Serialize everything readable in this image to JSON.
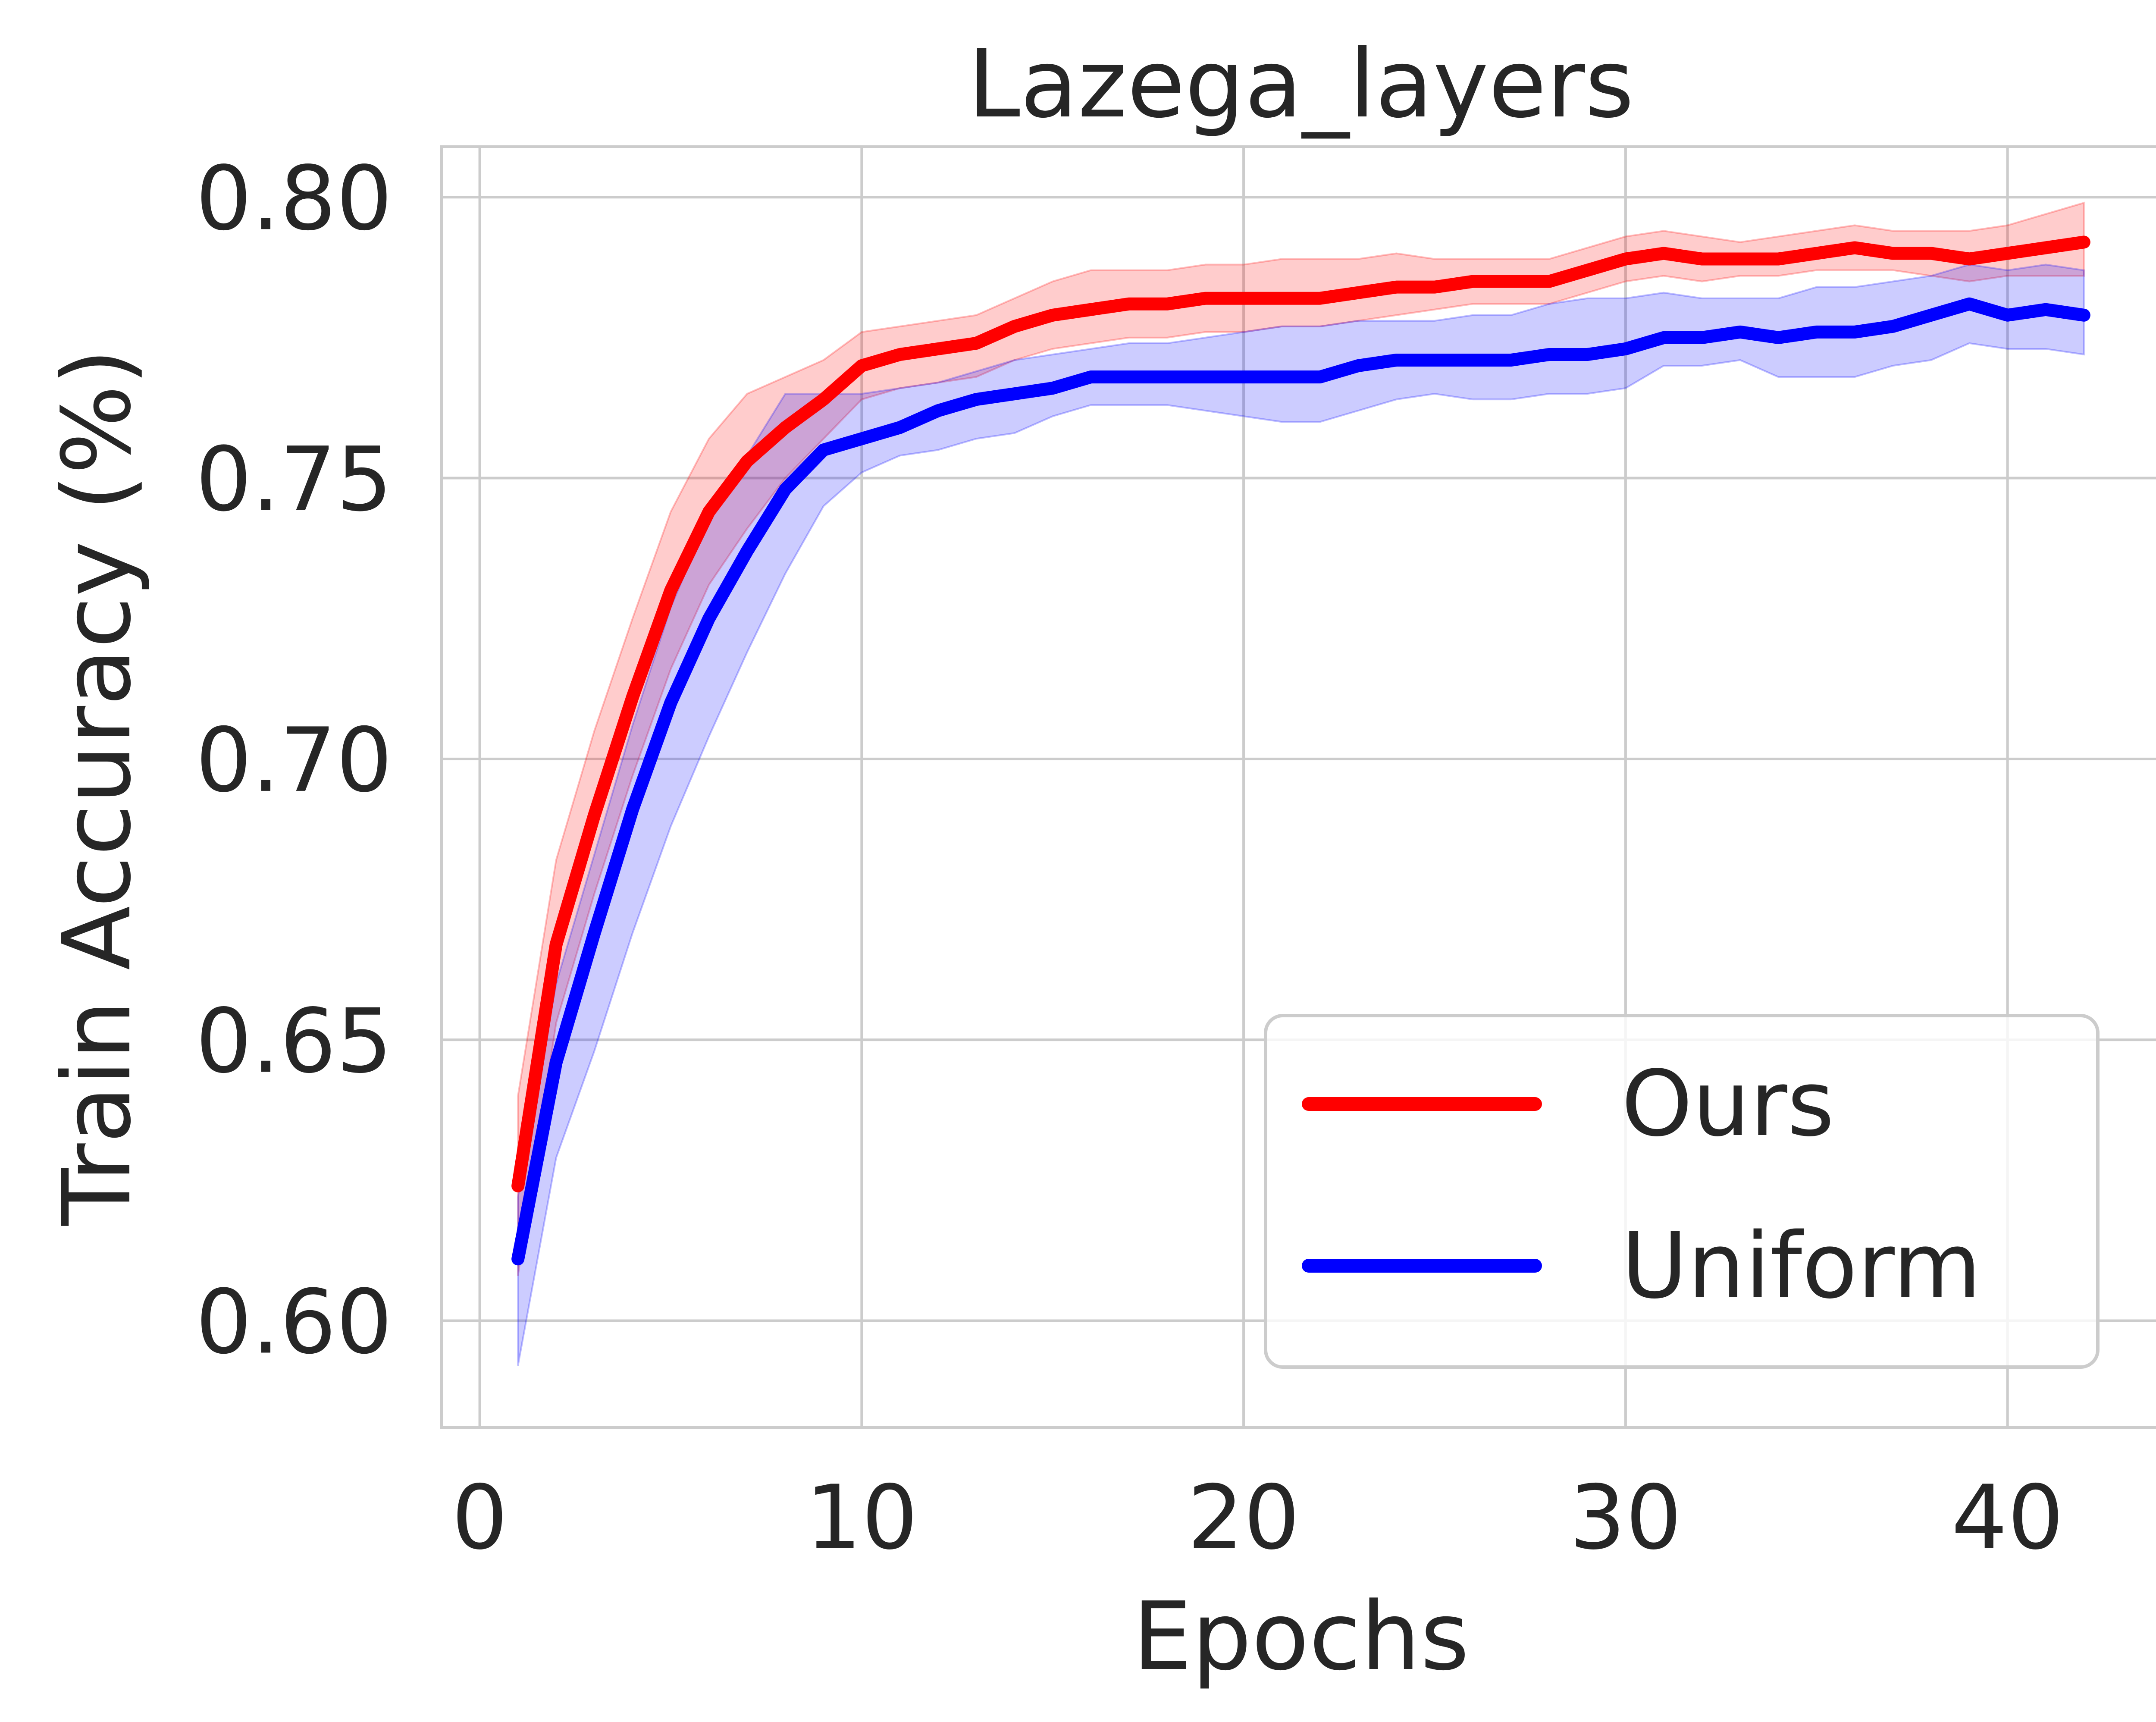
{
  "chart_data": {
    "type": "line",
    "title": "Lazega_layers",
    "xlabel": "Epochs",
    "ylabel": "Train Accuracy (%)",
    "xlim": [
      -1,
      44
    ],
    "ylim": [
      0.581,
      0.809
    ],
    "xticks": [
      0,
      10,
      20,
      30,
      40
    ],
    "xtick_labels": [
      "0",
      "10",
      "20",
      "30",
      "40"
    ],
    "yticks": [
      0.6,
      0.65,
      0.7,
      0.75,
      0.8
    ],
    "ytick_labels": [
      "0.60",
      "0.65",
      "0.70",
      "0.75",
      "0.80"
    ],
    "grid": true,
    "legend_position": "lower-right",
    "x": [
      1,
      2,
      3,
      4,
      5,
      6,
      7,
      8,
      9,
      10,
      11,
      12,
      13,
      14,
      15,
      16,
      17,
      18,
      19,
      20,
      21,
      22,
      23,
      24,
      25,
      26,
      27,
      28,
      29,
      30,
      31,
      32,
      33,
      34,
      35,
      36,
      37,
      38,
      39,
      40,
      41,
      42
    ],
    "series": [
      {
        "name": "Ours",
        "color": "#ff0000",
        "band_color": "#ff0000",
        "values": [
          0.624,
          0.667,
          0.69,
          0.711,
          0.73,
          0.744,
          0.753,
          0.759,
          0.764,
          0.77,
          0.772,
          0.773,
          0.774,
          0.777,
          0.779,
          0.78,
          0.781,
          0.781,
          0.782,
          0.782,
          0.782,
          0.782,
          0.783,
          0.784,
          0.784,
          0.785,
          0.785,
          0.785,
          0.787,
          0.789,
          0.79,
          0.789,
          0.789,
          0.789,
          0.79,
          0.791,
          0.79,
          0.79,
          0.789,
          0.79,
          0.791,
          0.792
        ],
        "lower": [
          0.608,
          0.653,
          0.676,
          0.697,
          0.716,
          0.731,
          0.741,
          0.75,
          0.757,
          0.764,
          0.766,
          0.767,
          0.768,
          0.771,
          0.773,
          0.774,
          0.775,
          0.775,
          0.776,
          0.776,
          0.777,
          0.777,
          0.778,
          0.779,
          0.78,
          0.781,
          0.781,
          0.781,
          0.783,
          0.785,
          0.786,
          0.785,
          0.786,
          0.786,
          0.787,
          0.787,
          0.787,
          0.786,
          0.785,
          0.786,
          0.786,
          0.786
        ],
        "upper": [
          0.64,
          0.682,
          0.705,
          0.725,
          0.744,
          0.757,
          0.765,
          0.768,
          0.771,
          0.776,
          0.777,
          0.778,
          0.779,
          0.782,
          0.785,
          0.787,
          0.787,
          0.787,
          0.788,
          0.788,
          0.789,
          0.789,
          0.789,
          0.79,
          0.789,
          0.789,
          0.789,
          0.789,
          0.791,
          0.793,
          0.794,
          0.793,
          0.792,
          0.793,
          0.794,
          0.795,
          0.794,
          0.794,
          0.794,
          0.795,
          0.797,
          0.799
        ]
      },
      {
        "name": "Uniform",
        "color": "#0000ff",
        "band_color": "#0000ff",
        "values": [
          0.611,
          0.646,
          0.669,
          0.691,
          0.71,
          0.725,
          0.737,
          0.748,
          0.755,
          0.757,
          0.759,
          0.762,
          0.764,
          0.765,
          0.766,
          0.768,
          0.768,
          0.768,
          0.768,
          0.768,
          0.768,
          0.768,
          0.77,
          0.771,
          0.771,
          0.771,
          0.771,
          0.772,
          0.772,
          0.773,
          0.775,
          0.775,
          0.776,
          0.775,
          0.776,
          0.776,
          0.777,
          0.779,
          0.781,
          0.779,
          0.78,
          0.779
        ],
        "lower": [
          0.592,
          0.629,
          0.648,
          0.669,
          0.688,
          0.704,
          0.719,
          0.733,
          0.745,
          0.751,
          0.754,
          0.755,
          0.757,
          0.758,
          0.761,
          0.763,
          0.763,
          0.763,
          0.762,
          0.761,
          0.76,
          0.76,
          0.762,
          0.764,
          0.765,
          0.764,
          0.764,
          0.765,
          0.765,
          0.766,
          0.77,
          0.77,
          0.771,
          0.768,
          0.768,
          0.768,
          0.77,
          0.771,
          0.774,
          0.773,
          0.773,
          0.772
        ],
        "upper": [
          0.622,
          0.66,
          0.683,
          0.706,
          0.727,
          0.743,
          0.754,
          0.765,
          0.765,
          0.765,
          0.766,
          0.767,
          0.769,
          0.771,
          0.772,
          0.773,
          0.774,
          0.774,
          0.775,
          0.776,
          0.777,
          0.777,
          0.778,
          0.778,
          0.778,
          0.779,
          0.779,
          0.781,
          0.782,
          0.782,
          0.783,
          0.782,
          0.782,
          0.782,
          0.784,
          0.784,
          0.785,
          0.786,
          0.788,
          0.787,
          0.788,
          0.787
        ]
      }
    ]
  }
}
